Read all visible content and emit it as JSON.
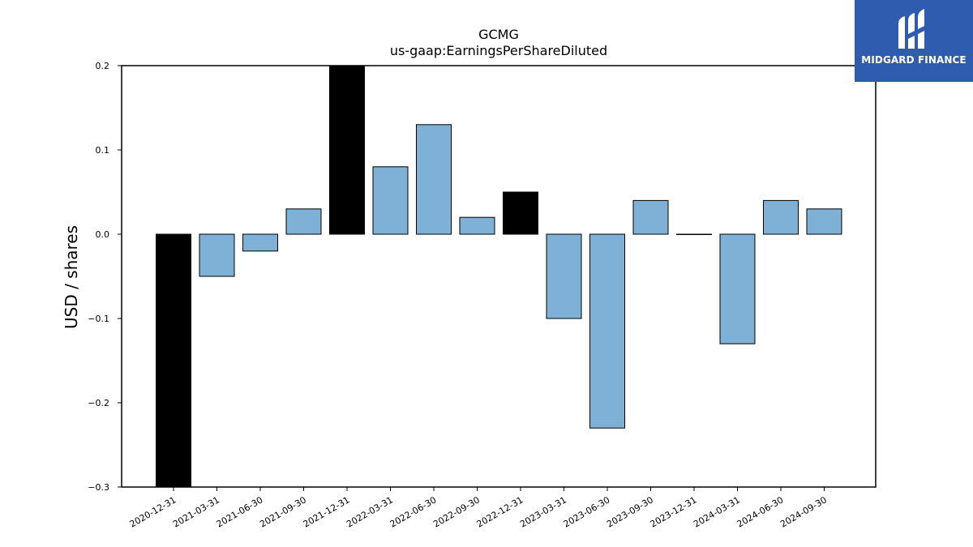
{
  "logo": {
    "text": "MIDGARD FINANCE",
    "icon": "midgard-finance-logo-icon",
    "background": "#2f5cae"
  },
  "chart_data": {
    "type": "bar",
    "title": "GCMG",
    "subtitle": "us-gaap:EarningsPerShareDiluted",
    "xlabel": "",
    "ylabel": "USD / shares",
    "ylim": [
      -0.3,
      0.2
    ],
    "yticks": [
      0.2,
      0.1,
      0.0,
      -0.1,
      -0.2,
      -0.3
    ],
    "ytick_labels": [
      "0.2",
      "0.1",
      "0.0",
      "−0.1",
      "−0.2",
      "−0.3"
    ],
    "categories": [
      "2020-12-31",
      "2021-03-31",
      "2021-06-30",
      "2021-09-30",
      "2021-12-31",
      "2022-03-31",
      "2022-06-30",
      "2022-09-30",
      "2022-12-31",
      "2023-03-31",
      "2023-06-30",
      "2023-09-30",
      "2023-12-31",
      "2024-03-31",
      "2024-06-30",
      "2024-09-30"
    ],
    "values": [
      -0.3,
      -0.05,
      -0.02,
      0.03,
      0.2,
      0.08,
      0.13,
      0.02,
      0.05,
      -0.1,
      -0.23,
      0.04,
      0.0,
      -0.13,
      0.04,
      0.03
    ],
    "bar_colors": [
      "#000000",
      "#7fb0d5",
      "#7fb0d5",
      "#7fb0d5",
      "#000000",
      "#7fb0d5",
      "#7fb0d5",
      "#7fb0d5",
      "#000000",
      "#7fb0d5",
      "#7fb0d5",
      "#7fb0d5",
      "#7fb0d5",
      "#7fb0d5",
      "#7fb0d5",
      "#7fb0d5"
    ],
    "grid": false
  }
}
